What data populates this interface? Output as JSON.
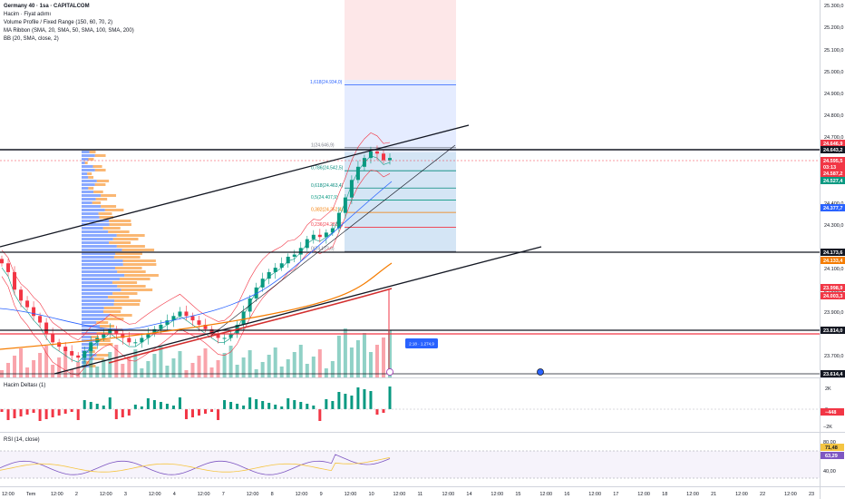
{
  "header": {
    "title": "Germany 40 · 1sa · CAPITALCOM",
    "indicators": [
      "Hacim · Fiyat adımı",
      "Volume Profile / Fixed Range (150, 60, 70, 2)",
      "MA Ribbon (SMA, 20, SMA, 50, SMA, 100, SMA, 200)",
      "BB (20, SMA, close, 2)"
    ]
  },
  "panes": {
    "delta_title": "Hacim Deltası (1)",
    "rsi_title": "RSI (14, close)"
  },
  "price_axis": {
    "ticks": [
      "25.300,0",
      "25.200,0",
      "25.100,0",
      "25.000,0",
      "24.900,0",
      "24.800,0",
      "24.700,0",
      "24.400,0",
      "24.300,0",
      "24.100,0",
      "24.000,0",
      "23.900,0",
      "23.700,0"
    ]
  },
  "price_tags": [
    {
      "label": "24.646,9",
      "color": "#f23645"
    },
    {
      "label": "24.643,2",
      "color": "#131722"
    },
    {
      "label": "24.595,5",
      "color": "#f23645"
    },
    {
      "label": "03:13",
      "color": "#f23645"
    },
    {
      "label": "24.587,2",
      "color": "#f23645"
    },
    {
      "label": "24.527,4",
      "color": "#089981"
    },
    {
      "label": "24.377,7",
      "color": "#2962ff"
    },
    {
      "label": "24.173,6",
      "color": "#131722"
    },
    {
      "label": "24.133,4",
      "color": "#f57c00"
    },
    {
      "label": "23.998,9",
      "color": "#f23645"
    },
    {
      "label": "24.003,3",
      "color": "#f23645"
    },
    {
      "label": "23.814,0",
      "color": "#131722"
    },
    {
      "label": "23.614,4",
      "color": "#131722"
    }
  ],
  "delta_axis": {
    "ticks": [
      "2K",
      "0",
      "−2K"
    ],
    "tag": "−448"
  },
  "rsi_axis": {
    "ticks": [
      "80,00",
      "40,00"
    ],
    "tags": [
      "71,48",
      "63,29"
    ]
  },
  "time_axis": {
    "labels": [
      "12:00",
      "Tem",
      "12:00",
      "2",
      "12:00",
      "3",
      "12:00",
      "4",
      "12:00",
      "7",
      "12:00",
      "8",
      "12:00",
      "9",
      "12:00",
      "10",
      "12:00",
      "11",
      "12:00",
      "14",
      "12:00",
      "15",
      "12:00",
      "16",
      "12:00",
      "17",
      "12:00",
      "18",
      "12:00",
      "21",
      "12:00",
      "22",
      "12:00",
      "23"
    ]
  },
  "fib_levels": [
    {
      "ratio": "1,618",
      "value": "24.934,0",
      "color": "#2962ff",
      "price": 24934
    },
    {
      "ratio": "1",
      "value": "24.646,9",
      "color": "#787b86",
      "price": 24647
    },
    {
      "ratio": "0,786",
      "value": "24.542,5",
      "color": "#00897b",
      "price": 24542
    },
    {
      "ratio": "0,618",
      "value": "24.463,4",
      "color": "#00897b",
      "price": 24463
    },
    {
      "ratio": "0,5",
      "value": "24.407,9",
      "color": "#089981",
      "price": 24408
    },
    {
      "ratio": "0,382",
      "value": "24.352,4",
      "color": "#f57c00",
      "price": 24352
    },
    {
      "ratio": "0,236",
      "value": "24.283,8",
      "color": "#f23645",
      "price": 24284
    },
    {
      "ratio": "0",
      "value": "24.173,6",
      "color": "#787b86",
      "price": 24174
    }
  ],
  "annotation": {
    "label": "2:18 · 1.274,9"
  },
  "colors": {
    "up": "#089981",
    "down": "#f23645",
    "bb": "#f23645",
    "ribbon_blue": "#2962ff",
    "ribbon_orange": "#f57c00",
    "rsi": "#7e57c2"
  },
  "chart_data": {
    "type": "candlestick",
    "symbol": "Germany 40",
    "interval": "1sa",
    "ylim": [
      23600,
      25320
    ],
    "candles_close_approx": [
      24120,
      24080,
      24000,
      23950,
      23920,
      23880,
      23850,
      23800,
      23760,
      23740,
      23720,
      23700,
      23690,
      23720,
      23760,
      23780,
      23800,
      23820,
      23800,
      23780,
      23760,
      23760,
      23780,
      23800,
      23820,
      23840,
      23860,
      23880,
      23900,
      23880,
      23860,
      23840,
      23820,
      23800,
      23780,
      23780,
      23800,
      23840,
      23900,
      23960,
      24010,
      24050,
      24080,
      24100,
      24120,
      24150,
      24160,
      24190,
      24230,
      24250,
      24240,
      24260,
      24280,
      24350,
      24420,
      24500,
      24560,
      24600,
      24630,
      24620,
      24590,
      24600
    ],
    "key_levels": [
      24643.2,
      24173.6,
      23814.0,
      23614.4
    ],
    "fibonacci": [
      {
        "ratio": 1.618,
        "price": 24934.0
      },
      {
        "ratio": 1,
        "price": 24646.9
      },
      {
        "ratio": 0.786,
        "price": 24542.5
      },
      {
        "ratio": 0.618,
        "price": 24463.4
      },
      {
        "ratio": 0.5,
        "price": 24407.9
      },
      {
        "ratio": 0.382,
        "price": 24352.4
      },
      {
        "ratio": 0.236,
        "price": 24283.8
      },
      {
        "ratio": 0,
        "price": 24173.6
      }
    ],
    "rsi_levels": [
      80,
      40
    ],
    "rsi_last": [
      71.48,
      63.29
    ]
  }
}
